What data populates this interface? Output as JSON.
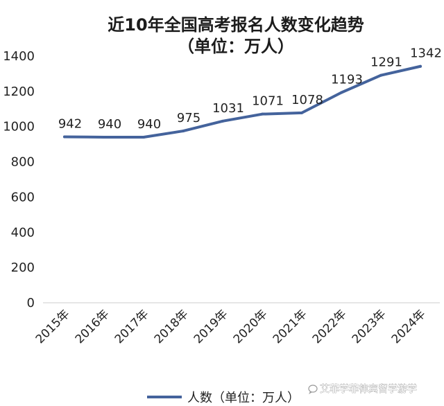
{
  "chart_data": {
    "type": "line",
    "title": "近10年全国高考报名人数变化趋势",
    "subtitle": "（单位：万人）",
    "categories": [
      "2015年",
      "2016年",
      "2017年",
      "2018年",
      "2019年",
      "2020年",
      "2021年",
      "2022年",
      "2023年",
      "2024年"
    ],
    "series": [
      {
        "name": "人数（单位：万人）",
        "values": [
          942,
          940,
          940,
          975,
          1031,
          1071,
          1078,
          1193,
          1291,
          1342
        ],
        "color": "#44639c"
      }
    ],
    "yticks": [
      "0",
      "200",
      "400",
      "600",
      "800",
      "1000",
      "1200",
      "1400"
    ],
    "ylim": [
      0,
      1400
    ],
    "xlabel": "",
    "ylabel": "",
    "grid": false,
    "legend_position": "bottom"
  },
  "watermark": "艾菲学菲律宾留学游学",
  "watermark_icon": "chat-bubble-icon",
  "colors": {
    "axis": "#cccccc",
    "text": "#222222"
  }
}
